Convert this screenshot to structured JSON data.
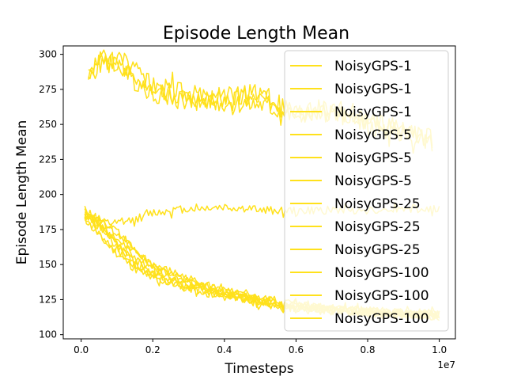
{
  "chart_data": {
    "type": "line",
    "title": "Episode Length Mean",
    "xlabel": "Timesteps",
    "ylabel": "Episode Length Mean",
    "x_offset_label": "1e7",
    "xlim": [
      -0.05,
      1.045
    ],
    "ylim": [
      97,
      306
    ],
    "xticks": [
      0.0,
      0.2,
      0.4,
      0.6,
      0.8,
      1.0
    ],
    "xtick_labels": [
      "0.0",
      "0.2",
      "0.4",
      "0.6",
      "0.8",
      "1.0"
    ],
    "yticks": [
      100,
      125,
      150,
      175,
      200,
      225,
      250,
      275,
      300
    ],
    "ytick_labels": [
      "100",
      "125",
      "150",
      "175",
      "200",
      "225",
      "250",
      "275",
      "300"
    ],
    "grid": false,
    "legend_position": "upper right",
    "series_color": "#FFE11C",
    "legend": [
      "NoisyGPS-1",
      "NoisyGPS-1",
      "NoisyGPS-1",
      "NoisyGPS-5",
      "NoisyGPS-5",
      "NoisyGPS-5",
      "NoisyGPS-25",
      "NoisyGPS-25",
      "NoisyGPS-25",
      "NoisyGPS-100",
      "NoisyGPS-100",
      "NoisyGPS-100"
    ],
    "series": [
      {
        "name": "NoisyGPS-1",
        "x": [
          0.02,
          0.05,
          0.1,
          0.15,
          0.2,
          0.3,
          0.4,
          0.5,
          0.6,
          0.7,
          0.8,
          0.9,
          0.98
        ],
        "y": [
          282,
          296,
          292,
          285,
          278,
          272,
          268,
          268,
          262,
          257,
          249,
          244,
          238
        ]
      },
      {
        "name": "NoisyGPS-1",
        "x": [
          0.02,
          0.05,
          0.1,
          0.15,
          0.2,
          0.3,
          0.4,
          0.5,
          0.6,
          0.7,
          0.8,
          0.9,
          0.98
        ],
        "y": [
          285,
          298,
          294,
          281,
          272,
          266,
          270,
          273,
          258,
          262,
          252,
          247,
          236
        ]
      },
      {
        "name": "NoisyGPS-1",
        "x": [
          0.02,
          0.05,
          0.1,
          0.15,
          0.2,
          0.3,
          0.4,
          0.5,
          0.6,
          0.7,
          0.8,
          0.9,
          0.98
        ],
        "y": [
          283,
          293,
          297,
          288,
          275,
          269,
          265,
          264,
          255,
          259,
          250,
          245,
          240
        ]
      },
      {
        "name": "NoisyGPS-5",
        "x": [
          0.01,
          0.05,
          0.1,
          0.15,
          0.2,
          0.3,
          0.4,
          0.5,
          0.6,
          0.7,
          0.8,
          0.9,
          1.0
        ],
        "y": [
          186,
          178,
          165,
          152,
          141,
          135,
          128,
          124,
          120,
          118,
          116,
          115,
          114
        ]
      },
      {
        "name": "NoisyGPS-5",
        "x": [
          0.01,
          0.05,
          0.1,
          0.15,
          0.2,
          0.3,
          0.4,
          0.5,
          0.6,
          0.7,
          0.8,
          0.9,
          1.0
        ],
        "y": [
          184,
          172,
          160,
          149,
          143,
          136,
          129,
          123,
          121,
          117,
          116,
          114,
          115
        ]
      },
      {
        "name": "NoisyGPS-5",
        "x": [
          0.01,
          0.05,
          0.1,
          0.15,
          0.2,
          0.3,
          0.4,
          0.5,
          0.6,
          0.7,
          0.8,
          0.9,
          1.0
        ],
        "y": [
          188,
          181,
          168,
          158,
          150,
          140,
          131,
          126,
          122,
          119,
          117,
          116,
          115
        ]
      },
      {
        "name": "NoisyGPS-25",
        "x": [
          0.01,
          0.05,
          0.1,
          0.15,
          0.2,
          0.3,
          0.4,
          0.5,
          0.6,
          0.7,
          0.8,
          0.9,
          1.0
        ],
        "y": [
          187,
          177,
          162,
          153,
          145,
          133,
          127,
          122,
          119,
          117,
          115,
          114,
          113
        ]
      },
      {
        "name": "NoisyGPS-25",
        "x": [
          0.01,
          0.05,
          0.1,
          0.15,
          0.2,
          0.3,
          0.4,
          0.5,
          0.6,
          0.7,
          0.8,
          0.9,
          1.0
        ],
        "y": [
          185,
          183,
          175,
          160,
          148,
          137,
          130,
          125,
          120,
          118,
          116,
          115,
          114
        ]
      },
      {
        "name": "NoisyGPS-25",
        "x": [
          0.01,
          0.05,
          0.1,
          0.15,
          0.2,
          0.3,
          0.4,
          0.5,
          0.6,
          0.7,
          0.8,
          0.9,
          1.0
        ],
        "y": [
          183,
          170,
          158,
          147,
          140,
          134,
          128,
          124,
          121,
          119,
          117,
          115,
          114
        ]
      },
      {
        "name": "NoisyGPS-100",
        "x": [
          0.01,
          0.05,
          0.1,
          0.15,
          0.2,
          0.3,
          0.4,
          0.5,
          0.6,
          0.7,
          0.8,
          0.9,
          1.0
        ],
        "y": [
          186,
          180,
          179,
          182,
          187,
          190,
          191,
          189,
          188,
          189,
          189,
          190,
          189
        ]
      },
      {
        "name": "NoisyGPS-100",
        "x": [
          0.01,
          0.05,
          0.1,
          0.15,
          0.2,
          0.3,
          0.4,
          0.5,
          0.6,
          0.7,
          0.8,
          0.9,
          1.0
        ],
        "y": [
          189,
          182,
          173,
          160,
          149,
          138,
          131,
          125,
          120,
          118,
          117,
          115,
          114
        ]
      },
      {
        "name": "NoisyGPS-100",
        "x": [
          0.01,
          0.05,
          0.1,
          0.15,
          0.2,
          0.3,
          0.4,
          0.5,
          0.6,
          0.7,
          0.8,
          0.9,
          1.0
        ],
        "y": [
          187,
          176,
          166,
          155,
          146,
          137,
          130,
          124,
          121,
          118,
          116,
          115,
          113
        ]
      }
    ]
  }
}
